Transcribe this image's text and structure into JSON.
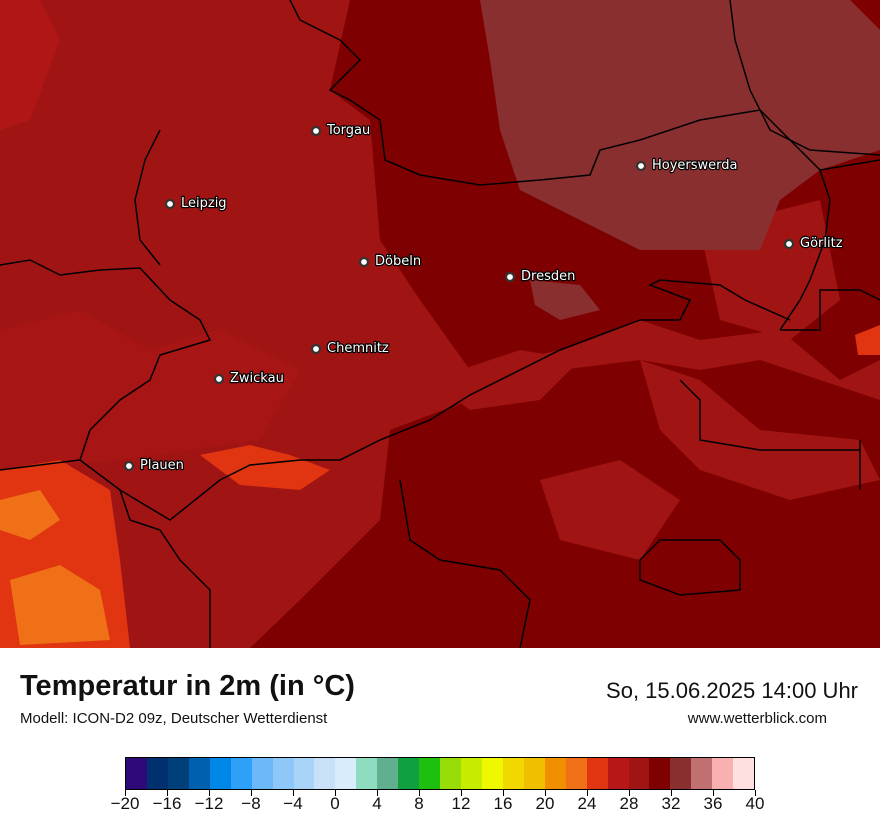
{
  "map": {
    "cities": [
      {
        "name": "Torgau"
      },
      {
        "name": "Leipzig"
      },
      {
        "name": "Hoyerswerda"
      },
      {
        "name": "Görlitz"
      },
      {
        "name": "Döbeln"
      },
      {
        "name": "Dresden"
      },
      {
        "name": "Chemnitz"
      },
      {
        "name": "Zwickau"
      },
      {
        "name": "Plauen"
      }
    ],
    "colors": {
      "temp_28_30": "#a01414",
      "temp_30_32": "#7f0000",
      "temp_32_34": "#8a2f2f",
      "temp_26_28": "#b81717",
      "temp_24_26": "#e03510",
      "temp_22_24": "#f07018",
      "borders": "#000000"
    }
  },
  "header": {
    "title": "Temperatur in 2m (in °C)",
    "model": "Modell: ICON-D2 09z, Deutscher Wetterdienst",
    "datetime": "So, 15.06.2025 14:00 Uhr",
    "website": "www.wetterblick.com"
  },
  "legend": {
    "colors": [
      "#2e0a78",
      "#00306e",
      "#00407a",
      "#0060b0",
      "#0088e8",
      "#2ea0f8",
      "#6cb8f8",
      "#8ec8f8",
      "#a8d4f8",
      "#c8e0f8",
      "#d8ecfc",
      "#90dcc0",
      "#60b090",
      "#10a040",
      "#1ec010",
      "#98dc08",
      "#c8ec00",
      "#f0f800",
      "#f0d800",
      "#f0c000",
      "#f09000",
      "#f07018",
      "#e03510",
      "#b81717",
      "#a01414",
      "#7f0000",
      "#8a2f2f",
      "#c07070",
      "#f8b0b0",
      "#ffe0e0"
    ],
    "tick_labels": [
      "−20",
      "−16",
      "−12",
      "−8",
      "−4",
      "0",
      "4",
      "8",
      "12",
      "16",
      "20",
      "24",
      "28",
      "32",
      "36",
      "40"
    ]
  }
}
